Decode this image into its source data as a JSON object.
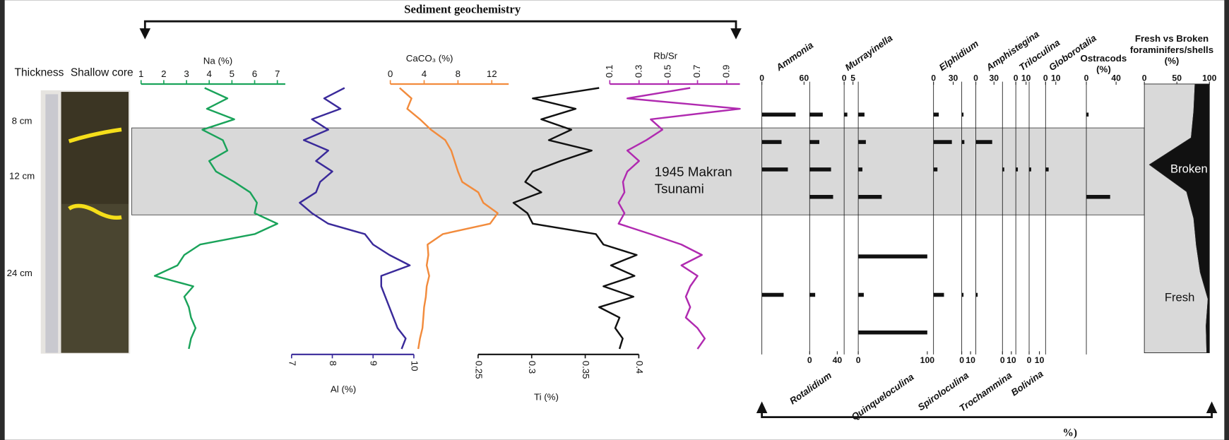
{
  "header": {
    "title": "Sediment geochemistry",
    "footer": "%)"
  },
  "core": {
    "columns": [
      "Thickness",
      "Shallow core"
    ],
    "labels": [
      "8 cm",
      "12 cm",
      "24 cm"
    ]
  },
  "event_label": [
    "1945 Makran",
    "Tsunami"
  ],
  "chart_data": [
    {
      "type": "line",
      "xlabel": "Na (%)",
      "color": "#1aa35a",
      "xlim": [
        1,
        7.35
      ],
      "xticks": [
        1,
        2,
        3,
        4,
        5,
        6,
        7
      ],
      "values": [
        3.8,
        4.8,
        3.9,
        5.1,
        3.7,
        4.6,
        4.8,
        4.0,
        4.3,
        5.1,
        5.8,
        6.1,
        6.0,
        7.0,
        6.0,
        3.6,
        2.9,
        2.6,
        1.6,
        3.3,
        2.9,
        3.1,
        3.2,
        3.4,
        3.2,
        3.1
      ]
    },
    {
      "type": "line",
      "xlabel": "Al (%)",
      "color": "#3a2a9a",
      "xlim": [
        7,
        10
      ],
      "xticks": [
        7,
        8,
        9,
        10
      ],
      "values": [
        8.3,
        7.8,
        8.2,
        7.5,
        7.9,
        7.3,
        7.9,
        7.6,
        8.0,
        7.7,
        7.6,
        7.2,
        7.5,
        7.9,
        8.8,
        9.0,
        9.4,
        9.9,
        9.2,
        9.2,
        9.3,
        9.4,
        9.5,
        9.6,
        9.8,
        9.7
      ]
    },
    {
      "type": "line",
      "xlabel": "CaCO₃ (%)",
      "color": "#f28b3c",
      "xlim": [
        0,
        14
      ],
      "xticks": [
        0,
        4,
        8,
        12
      ],
      "values": [
        1.1,
        2.5,
        2.0,
        3.5,
        4.8,
        6.5,
        7.2,
        7.6,
        8.0,
        8.5,
        10.4,
        11.0,
        12.7,
        11.8,
        6.2,
        4.4,
        4.5,
        4.3,
        4.6,
        4.3,
        4.2,
        4.0,
        3.9,
        3.8,
        3.5,
        3.3
      ]
    },
    {
      "type": "line",
      "xlabel": "Ti (%)",
      "color": "#111111",
      "xlim": [
        0.25,
        0.4
      ],
      "xticks": [
        0.25,
        0.3,
        0.35,
        0.4
      ],
      "values": [
        0.363,
        0.301,
        0.341,
        0.309,
        0.337,
        0.316,
        0.356,
        0.327,
        0.301,
        0.294,
        0.309,
        0.283,
        0.296,
        0.301,
        0.36,
        0.367,
        0.398,
        0.374,
        0.396,
        0.367,
        0.395,
        0.363,
        0.382,
        0.378,
        0.385,
        0.382
      ]
    },
    {
      "type": "line",
      "xlabel": "Rb/Sr",
      "color": "#b02ab0",
      "xlim": [
        0.1,
        0.99
      ],
      "xticks": [
        0.1,
        0.3,
        0.5,
        0.7,
        0.9
      ],
      "values": [
        0.65,
        0.22,
        0.99,
        0.38,
        0.46,
        0.35,
        0.22,
        0.3,
        0.22,
        0.19,
        0.2,
        0.16,
        0.2,
        0.16,
        0.38,
        0.59,
        0.73,
        0.59,
        0.7,
        0.65,
        0.62,
        0.65,
        0.62,
        0.7,
        0.75,
        0.7
      ]
    },
    {
      "type": "bar",
      "title": [
        "Ammonia"
      ],
      "color": "#111111",
      "xlim": [
        0,
        68
      ],
      "xticks": [
        0,
        60
      ],
      "values": [
        48,
        28,
        37,
        null,
        null,
        31,
        null
      ]
    },
    {
      "type": "bar",
      "title": [
        "Rotalidium"
      ],
      "color": "#111111",
      "xlim": [
        0,
        50
      ],
      "xticks": [
        0,
        40
      ],
      "values": [
        19,
        14,
        31,
        34,
        null,
        8,
        null
      ]
    },
    {
      "type": "bar",
      "title": [
        "Murrayinella"
      ],
      "color": "#111111",
      "xlim": [
        0,
        8
      ],
      "xticks": [
        0,
        5
      ],
      "values": [
        1.8,
        null,
        null,
        null,
        null,
        null,
        null
      ]
    },
    {
      "type": "bar",
      "title": [
        "Quinqueloculina"
      ],
      "color": "#111111",
      "xlim": [
        0,
        109
      ],
      "xticks": [
        0,
        100
      ],
      "values": [
        9,
        11,
        6,
        34,
        100,
        8,
        100
      ]
    },
    {
      "type": "bar",
      "title": [
        "Elphidium"
      ],
      "color": "#111111",
      "xlim": [
        0,
        43
      ],
      "xticks": [
        0,
        30
      ],
      "values": [
        8,
        28,
        6,
        null,
        null,
        16,
        null
      ]
    },
    {
      "type": "bar",
      "title": [
        "Spiroloculina"
      ],
      "color": "#111111",
      "xlim": [
        0,
        16
      ],
      "xticks": [
        0,
        10
      ],
      "values": [
        2,
        3,
        null,
        null,
        null,
        2,
        null
      ]
    },
    {
      "type": "bar",
      "title": [
        "Amphistegina"
      ],
      "color": "#111111",
      "xlim": [
        0,
        44
      ],
      "xticks": [
        0,
        30
      ],
      "values": [
        null,
        27,
        null,
        null,
        null,
        3,
        null
      ]
    },
    {
      "type": "bar",
      "title": [
        "Trochammina"
      ],
      "color": "#111111",
      "xlim": [
        0,
        15
      ],
      "xticks": [
        0,
        10
      ],
      "values": [
        null,
        null,
        2,
        null,
        null,
        null,
        null
      ]
    },
    {
      "type": "bar",
      "title": [
        "Triloculina"
      ],
      "color": "#111111",
      "xlim": [
        0,
        13
      ],
      "xticks": [
        0,
        10
      ],
      "values": [
        null,
        null,
        2,
        null,
        null,
        null,
        null
      ]
    },
    {
      "type": "bar",
      "title": [
        "Bolivina"
      ],
      "color": "#111111",
      "xlim": [
        0,
        16
      ],
      "xticks": [
        0,
        10
      ],
      "values": [
        null,
        null,
        2,
        null,
        null,
        null,
        null
      ]
    },
    {
      "type": "bar",
      "title": [
        "Globorotalia"
      ],
      "color": "#111111",
      "xlim": [
        0,
        40
      ],
      "xticks": [
        0,
        10
      ],
      "values": [
        null,
        null,
        3,
        null,
        null,
        null,
        null
      ]
    },
    {
      "type": "bar",
      "title": [
        "Ostracods",
        "(%)"
      ],
      "color": "#111111",
      "xlim": [
        0,
        78
      ],
      "xticks": [
        0,
        40
      ],
      "values": [
        3,
        null,
        null,
        32,
        null,
        null,
        null
      ]
    },
    {
      "type": "area",
      "title": [
        "Fresh vs Broken",
        "foraminifers/shells",
        "(%)"
      ],
      "xlim": [
        0,
        100
      ],
      "xticks": [
        0,
        50,
        100
      ],
      "series": [
        {
          "name": "Fresh",
          "color": "#d9d9d9",
          "values": [
            78,
            76,
            72,
            8,
            65,
            76,
            80,
            86,
            98,
            95,
            96
          ]
        },
        {
          "name": "Broken",
          "color": "#111111",
          "values": [
            22,
            24,
            28,
            92,
            35,
            24,
            20,
            14,
            2,
            5,
            4
          ]
        }
      ]
    }
  ]
}
